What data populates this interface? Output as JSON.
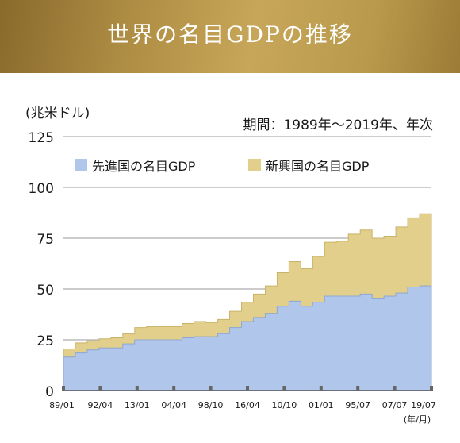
{
  "header": {
    "title": "世界の名目GDPの推移"
  },
  "chart_data": {
    "type": "area",
    "ylabel": "(兆米ドル)",
    "period": "期間：1989年〜2019年、年次",
    "xlabel": "(年/月)",
    "ylim": [
      0,
      125
    ],
    "yticks": [
      "0",
      "25",
      "50",
      "75",
      "100",
      "125"
    ],
    "xticks": [
      "89/01",
      "92/04",
      "13/01",
      "04/04",
      "98/10",
      "16/04",
      "10/10",
      "01/01",
      "95/07",
      "07/07",
      "19/07"
    ],
    "legend_position": "top-left",
    "grid": "horizontal",
    "stacked": true,
    "x": [
      1989,
      1990,
      1991,
      1992,
      1993,
      1994,
      1995,
      1996,
      1997,
      1998,
      1999,
      2000,
      2001,
      2002,
      2003,
      2004,
      2005,
      2006,
      2007,
      2008,
      2009,
      2010,
      2011,
      2012,
      2013,
      2014,
      2015,
      2016,
      2017,
      2018,
      2019
    ],
    "series": [
      {
        "name": "先進国の名目GDP",
        "color": "#b0c6ea",
        "values": [
          16.5,
          18.5,
          20,
          21,
          21,
          23,
          25,
          25,
          25,
          25,
          26,
          26.5,
          26.5,
          28,
          31,
          34,
          36,
          38,
          41.5,
          44,
          41.5,
          43.5,
          46.5,
          46.5,
          46.5,
          47.5,
          45.5,
          46.5,
          48,
          51,
          51.5
        ]
      },
      {
        "name": "新興国の名目GDP",
        "color": "#e2cf8c",
        "values": [
          4,
          5,
          4.5,
          4.5,
          5,
          5,
          6,
          6.5,
          6.5,
          6.5,
          7,
          7.5,
          7,
          7,
          8,
          9.5,
          11.5,
          13.5,
          16.5,
          19.5,
          18.5,
          22.5,
          26.5,
          27,
          30.5,
          31.5,
          29.5,
          29.5,
          32.5,
          34,
          35.5
        ]
      }
    ]
  }
}
